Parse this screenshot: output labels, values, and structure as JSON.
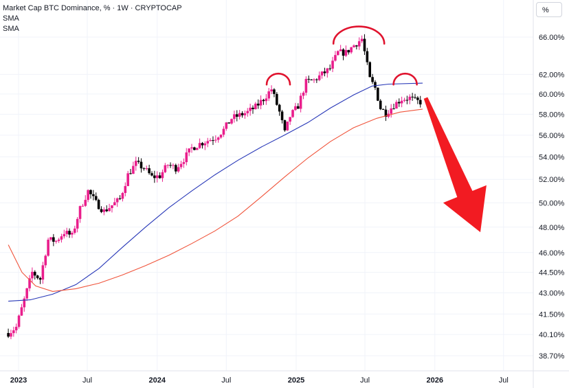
{
  "legend": {
    "title": "Market Cap BTC Dominance, % · 1W · CRYPTOCAP",
    "sma1": "SMA",
    "sma2": "SMA"
  },
  "scale_button": {
    "label": "%"
  },
  "colors": {
    "up_candle": "#e91e8c",
    "down_candle": "#000000",
    "sma_fast": "#2636b7",
    "sma_slow": "#f0533a",
    "annotation_arc": "#e0132e",
    "arrow": "#f21b22",
    "grid": "#f0f3fa"
  },
  "chart_data": {
    "type": "candlestick",
    "title": "Market Cap BTC Dominance, % · 1W · CRYPTOCAP",
    "y_axis": {
      "scale": "log",
      "unit": "%",
      "ticks": [
        "66.00%",
        "62.00%",
        "60.00%",
        "58.00%",
        "56.00%",
        "54.00%",
        "52.00%",
        "50.00%",
        "48.00%",
        "46.00%",
        "44.50%",
        "43.00%",
        "41.50%",
        "40.10%",
        "38.70%"
      ],
      "tick_values": [
        66.0,
        62.0,
        60.0,
        58.0,
        56.0,
        54.0,
        52.0,
        50.0,
        48.0,
        46.0,
        44.5,
        43.0,
        41.5,
        40.1,
        38.7
      ]
    },
    "x_axis": {
      "ticks": [
        "2023",
        "Jul",
        "2024",
        "Jul",
        "2025",
        "Jul",
        "2026",
        "Jul"
      ],
      "tick_dates": [
        "2023-01-01",
        "2023-07-01",
        "2024-01-01",
        "2024-07-01",
        "2025-01-01",
        "2025-07-01",
        "2026-01-01",
        "2026-07-01"
      ],
      "bold_ticks": [
        "2023",
        "2024",
        "2025",
        "2026"
      ]
    },
    "series": [
      {
        "name": "Market Cap BTC Dominance",
        "kind": "weekly close (approx.)",
        "points": [
          [
            "2022-12-05",
            40.2
          ],
          [
            "2022-12-26",
            40.6
          ],
          [
            "2023-01-16",
            42.5
          ],
          [
            "2023-02-06",
            44.5
          ],
          [
            "2023-02-27",
            44.0
          ],
          [
            "2023-03-20",
            47.0
          ],
          [
            "2023-04-10",
            46.9
          ],
          [
            "2023-05-01",
            47.6
          ],
          [
            "2023-05-22",
            47.3
          ],
          [
            "2023-06-12",
            49.5
          ],
          [
            "2023-07-03",
            51.0
          ],
          [
            "2023-07-24",
            50.0
          ],
          [
            "2023-08-14",
            49.3
          ],
          [
            "2023-09-04",
            49.8
          ],
          [
            "2023-09-25",
            50.3
          ],
          [
            "2023-10-16",
            52.4
          ],
          [
            "2023-11-06",
            53.4
          ],
          [
            "2023-11-27",
            53.0
          ],
          [
            "2023-12-18",
            52.2
          ],
          [
            "2024-01-08",
            52.3
          ],
          [
            "2024-01-29",
            53.3
          ],
          [
            "2024-02-19",
            53.0
          ],
          [
            "2024-03-11",
            53.8
          ],
          [
            "2024-04-01",
            54.8
          ],
          [
            "2024-04-22",
            55.2
          ],
          [
            "2024-05-13",
            55.5
          ],
          [
            "2024-06-03",
            55.8
          ],
          [
            "2024-06-24",
            56.5
          ],
          [
            "2024-07-15",
            57.6
          ],
          [
            "2024-08-05",
            57.9
          ],
          [
            "2024-08-26",
            58.2
          ],
          [
            "2024-09-16",
            58.7
          ],
          [
            "2024-10-07",
            59.5
          ],
          [
            "2024-10-28",
            60.5
          ],
          [
            "2024-11-18",
            58.2
          ],
          [
            "2024-12-02",
            56.2
          ],
          [
            "2024-12-16",
            57.8
          ],
          [
            "2025-01-06",
            58.8
          ],
          [
            "2025-01-27",
            61.2
          ],
          [
            "2025-02-17",
            61.4
          ],
          [
            "2025-03-10",
            62.0
          ],
          [
            "2025-03-31",
            62.6
          ],
          [
            "2025-04-21",
            64.3
          ],
          [
            "2025-05-12",
            64.3
          ],
          [
            "2025-06-02",
            65.1
          ],
          [
            "2025-06-23",
            65.8
          ],
          [
            "2025-07-14",
            61.5
          ],
          [
            "2025-07-28",
            60.6
          ],
          [
            "2025-08-11",
            58.6
          ],
          [
            "2025-08-25",
            58.1
          ],
          [
            "2025-09-15",
            58.9
          ],
          [
            "2025-10-06",
            59.5
          ],
          [
            "2025-10-27",
            59.6
          ],
          [
            "2025-11-10",
            59.3
          ],
          [
            "2025-11-24",
            59.2
          ]
        ]
      },
      {
        "name": "SMA",
        "color": "#2636b7",
        "points": [
          [
            "2022-12-05",
            42.4
          ],
          [
            "2023-02-01",
            42.5
          ],
          [
            "2023-04-01",
            42.9
          ],
          [
            "2023-06-01",
            43.6
          ],
          [
            "2023-08-01",
            44.8
          ],
          [
            "2023-10-01",
            46.4
          ],
          [
            "2023-12-01",
            48.0
          ],
          [
            "2024-02-01",
            49.6
          ],
          [
            "2024-04-01",
            51.0
          ],
          [
            "2024-06-01",
            52.4
          ],
          [
            "2024-08-01",
            53.7
          ],
          [
            "2024-10-01",
            54.9
          ],
          [
            "2024-12-01",
            56.0
          ],
          [
            "2025-02-01",
            57.2
          ],
          [
            "2025-04-01",
            58.6
          ],
          [
            "2025-06-01",
            59.9
          ],
          [
            "2025-07-20",
            60.8
          ],
          [
            "2025-09-01",
            61.0
          ],
          [
            "2025-11-30",
            61.1
          ]
        ]
      },
      {
        "name": "SMA",
        "color": "#f0533a",
        "points": [
          [
            "2022-12-05",
            46.6
          ],
          [
            "2023-01-10",
            44.5
          ],
          [
            "2023-02-15",
            43.5
          ],
          [
            "2023-04-01",
            43.1
          ],
          [
            "2023-06-01",
            43.3
          ],
          [
            "2023-08-01",
            43.7
          ],
          [
            "2023-10-01",
            44.3
          ],
          [
            "2023-12-01",
            45.0
          ],
          [
            "2024-02-01",
            45.8
          ],
          [
            "2024-04-01",
            46.7
          ],
          [
            "2024-06-01",
            47.7
          ],
          [
            "2024-08-01",
            48.9
          ],
          [
            "2024-10-01",
            50.5
          ],
          [
            "2024-12-01",
            52.2
          ],
          [
            "2025-02-01",
            53.9
          ],
          [
            "2025-04-01",
            55.4
          ],
          [
            "2025-06-01",
            56.7
          ],
          [
            "2025-08-01",
            57.6
          ],
          [
            "2025-10-01",
            58.2
          ],
          [
            "2025-11-30",
            58.5
          ]
        ]
      }
    ],
    "annotations": [
      {
        "type": "arc",
        "at": "2024-11-15",
        "level": 61.8
      },
      {
        "type": "arc",
        "at": "2025-06-15",
        "level": 66.7
      },
      {
        "type": "arc",
        "at": "2025-10-15",
        "level": 61.8
      },
      {
        "type": "arrow",
        "direction": "down",
        "from": [
          "2025-12-08",
          59.6
        ],
        "to": [
          "2026-05-01",
          47.6
        ]
      }
    ],
    "grid": true,
    "legend_position": "top-left"
  }
}
